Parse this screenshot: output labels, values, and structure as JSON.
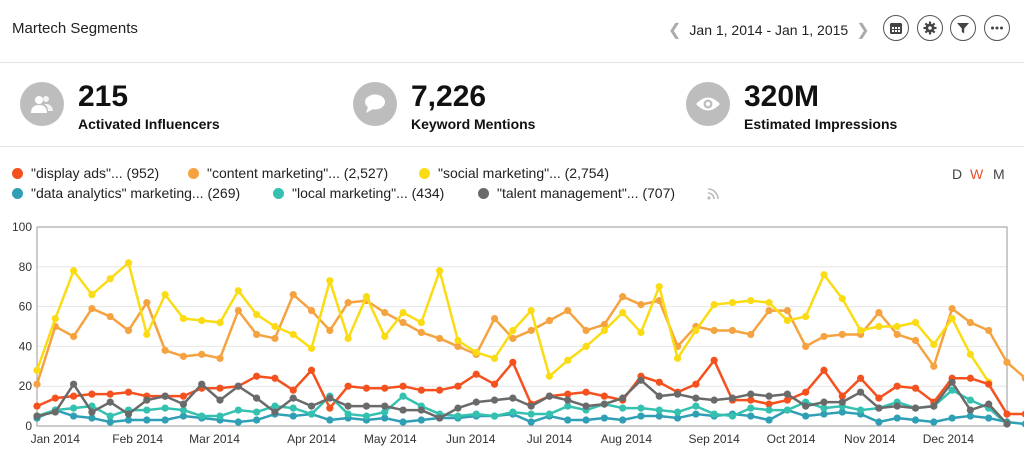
{
  "header": {
    "title": "Martech Segments",
    "date_range": "Jan 1, 2014 - Jan 1, 2015",
    "prev_icon": "chevron-left-icon",
    "next_icon": "chevron-right-icon",
    "tools": [
      "calendar-icon",
      "gear-icon",
      "filter-icon",
      "more-icon"
    ]
  },
  "stats": [
    {
      "value": "215",
      "label": "Activated Influencers",
      "icon": "people-icon"
    },
    {
      "value": "7,226",
      "label": "Keyword Mentions",
      "icon": "speech-bubble-icon"
    },
    {
      "value": "320M",
      "label": "Estimated Impressions",
      "icon": "eye-icon"
    }
  ],
  "legend": [
    {
      "label": "\"display ads\"... (952)",
      "color": "#f4511e"
    },
    {
      "label": "\"content marketing\"... (2,527)",
      "color": "#f5a340"
    },
    {
      "label": "\"social marketing\"... (2,754)",
      "color": "#fbdc14"
    },
    {
      "label": "\"data analytics\" marketing... (269)",
      "color": "#2e9fb4"
    },
    {
      "label": "\"local marketing\"... (434)",
      "color": "#35c1b0"
    },
    {
      "label": "\"talent management\"... (707)",
      "color": "#6a6a6a"
    }
  ],
  "rss_icon": "rss-icon",
  "granularity": {
    "d": "D",
    "w": "W",
    "m": "M",
    "active": "W"
  },
  "chart_data": {
    "type": "line",
    "ylim": [
      0,
      100
    ],
    "yticks": [
      0,
      20,
      40,
      60,
      80,
      100
    ],
    "xlim": [
      0,
      53
    ],
    "x_tick_labels": [
      "Jan 2014",
      "Feb 2014",
      "Mar 2014",
      "Apr 2014",
      "May 2014",
      "Jun 2014",
      "Jul 2014",
      "Aug 2014",
      "Sep 2014",
      "Oct 2014",
      "Nov 2014",
      "Dec 2014"
    ],
    "x_tick_weeks": [
      1,
      5.5,
      9.7,
      15,
      19.3,
      23.7,
      28,
      32.2,
      37,
      41.2,
      45.5,
      49.8
    ],
    "grid": true,
    "series": [
      {
        "name": "\"content marketing\"... (2,527)",
        "color": "#f5a340",
        "values": [
          21,
          50,
          45,
          59,
          55,
          48,
          62,
          38,
          35,
          36,
          34,
          58,
          46,
          44,
          66,
          58,
          48,
          62,
          63,
          57,
          52,
          47,
          44,
          40,
          36,
          54,
          44,
          48,
          53,
          58,
          48,
          51,
          65,
          61,
          63,
          40,
          50,
          48,
          48,
          46,
          58,
          58,
          40,
          45,
          46,
          46,
          57,
          46,
          43,
          30,
          59,
          52,
          48,
          32,
          24
        ]
      },
      {
        "name": "\"social marketing\"... (2,754)",
        "color": "#fbdc14",
        "values": [
          28,
          54,
          78,
          66,
          74,
          82,
          46,
          66,
          54,
          53,
          52,
          68,
          56,
          50,
          46,
          39,
          73,
          44,
          65,
          45,
          57,
          52,
          78,
          43,
          37,
          34,
          48,
          58,
          25,
          33,
          40,
          48,
          57,
          47,
          70,
          34,
          48,
          61,
          62,
          63,
          62,
          53,
          55,
          76,
          64,
          48,
          50,
          50,
          52,
          41,
          54,
          36,
          22
        ]
      },
      {
        "name": "\"display ads\"... (952)",
        "color": "#f4511e",
        "values": [
          10,
          14,
          15,
          16,
          16,
          17,
          15,
          15,
          15,
          19,
          19,
          20,
          25,
          24,
          18,
          28,
          9,
          20,
          19,
          19,
          20,
          18,
          18,
          20,
          26,
          21,
          32,
          11,
          15,
          16,
          17,
          15,
          13,
          25,
          22,
          17,
          21,
          33,
          13,
          13,
          11,
          13,
          17,
          28,
          15,
          24,
          14,
          20,
          19,
          12,
          24,
          24,
          21,
          6,
          6
        ]
      },
      {
        "name": "\"data analytics\" marketing... (269)",
        "color": "#2e9fb4",
        "values": [
          4,
          8,
          5,
          4,
          2,
          3,
          3,
          3,
          5,
          4,
          3,
          2,
          3,
          6,
          5,
          6,
          3,
          4,
          3,
          4,
          2,
          3,
          4,
          4,
          5,
          5,
          6,
          2,
          5,
          3,
          3,
          4,
          3,
          5,
          5,
          4,
          6,
          5,
          6,
          5,
          3,
          8,
          5,
          6,
          7,
          6,
          2,
          4,
          3,
          2,
          4,
          5,
          4,
          2,
          1
        ]
      },
      {
        "name": "\"local marketing\"... (434)",
        "color": "#35c1b0",
        "values": [
          5,
          8,
          9,
          10,
          5,
          8,
          8,
          9,
          8,
          5,
          5,
          8,
          7,
          10,
          9,
          6,
          15,
          6,
          5,
          7,
          15,
          10,
          6,
          5,
          6,
          5,
          7,
          6,
          6,
          10,
          8,
          11,
          9,
          9,
          8,
          7,
          10,
          6,
          5,
          9,
          8,
          8,
          12,
          9,
          10,
          8,
          9,
          12,
          9,
          10,
          18,
          13,
          9,
          1
        ]
      },
      {
        "name": "\"talent management\"... (707)",
        "color": "#6a6a6a",
        "values": [
          5,
          7,
          21,
          7,
          12,
          6,
          13,
          15,
          11,
          21,
          13,
          20,
          14,
          7,
          14,
          10,
          14,
          10,
          10,
          10,
          8,
          8,
          4,
          9,
          12,
          13,
          14,
          10,
          15,
          13,
          10,
          11,
          14,
          23,
          15,
          16,
          14,
          13,
          14,
          16,
          15,
          16,
          10,
          12,
          12,
          17,
          9,
          10,
          9,
          10,
          22,
          8,
          11,
          1
        ]
      }
    ]
  }
}
